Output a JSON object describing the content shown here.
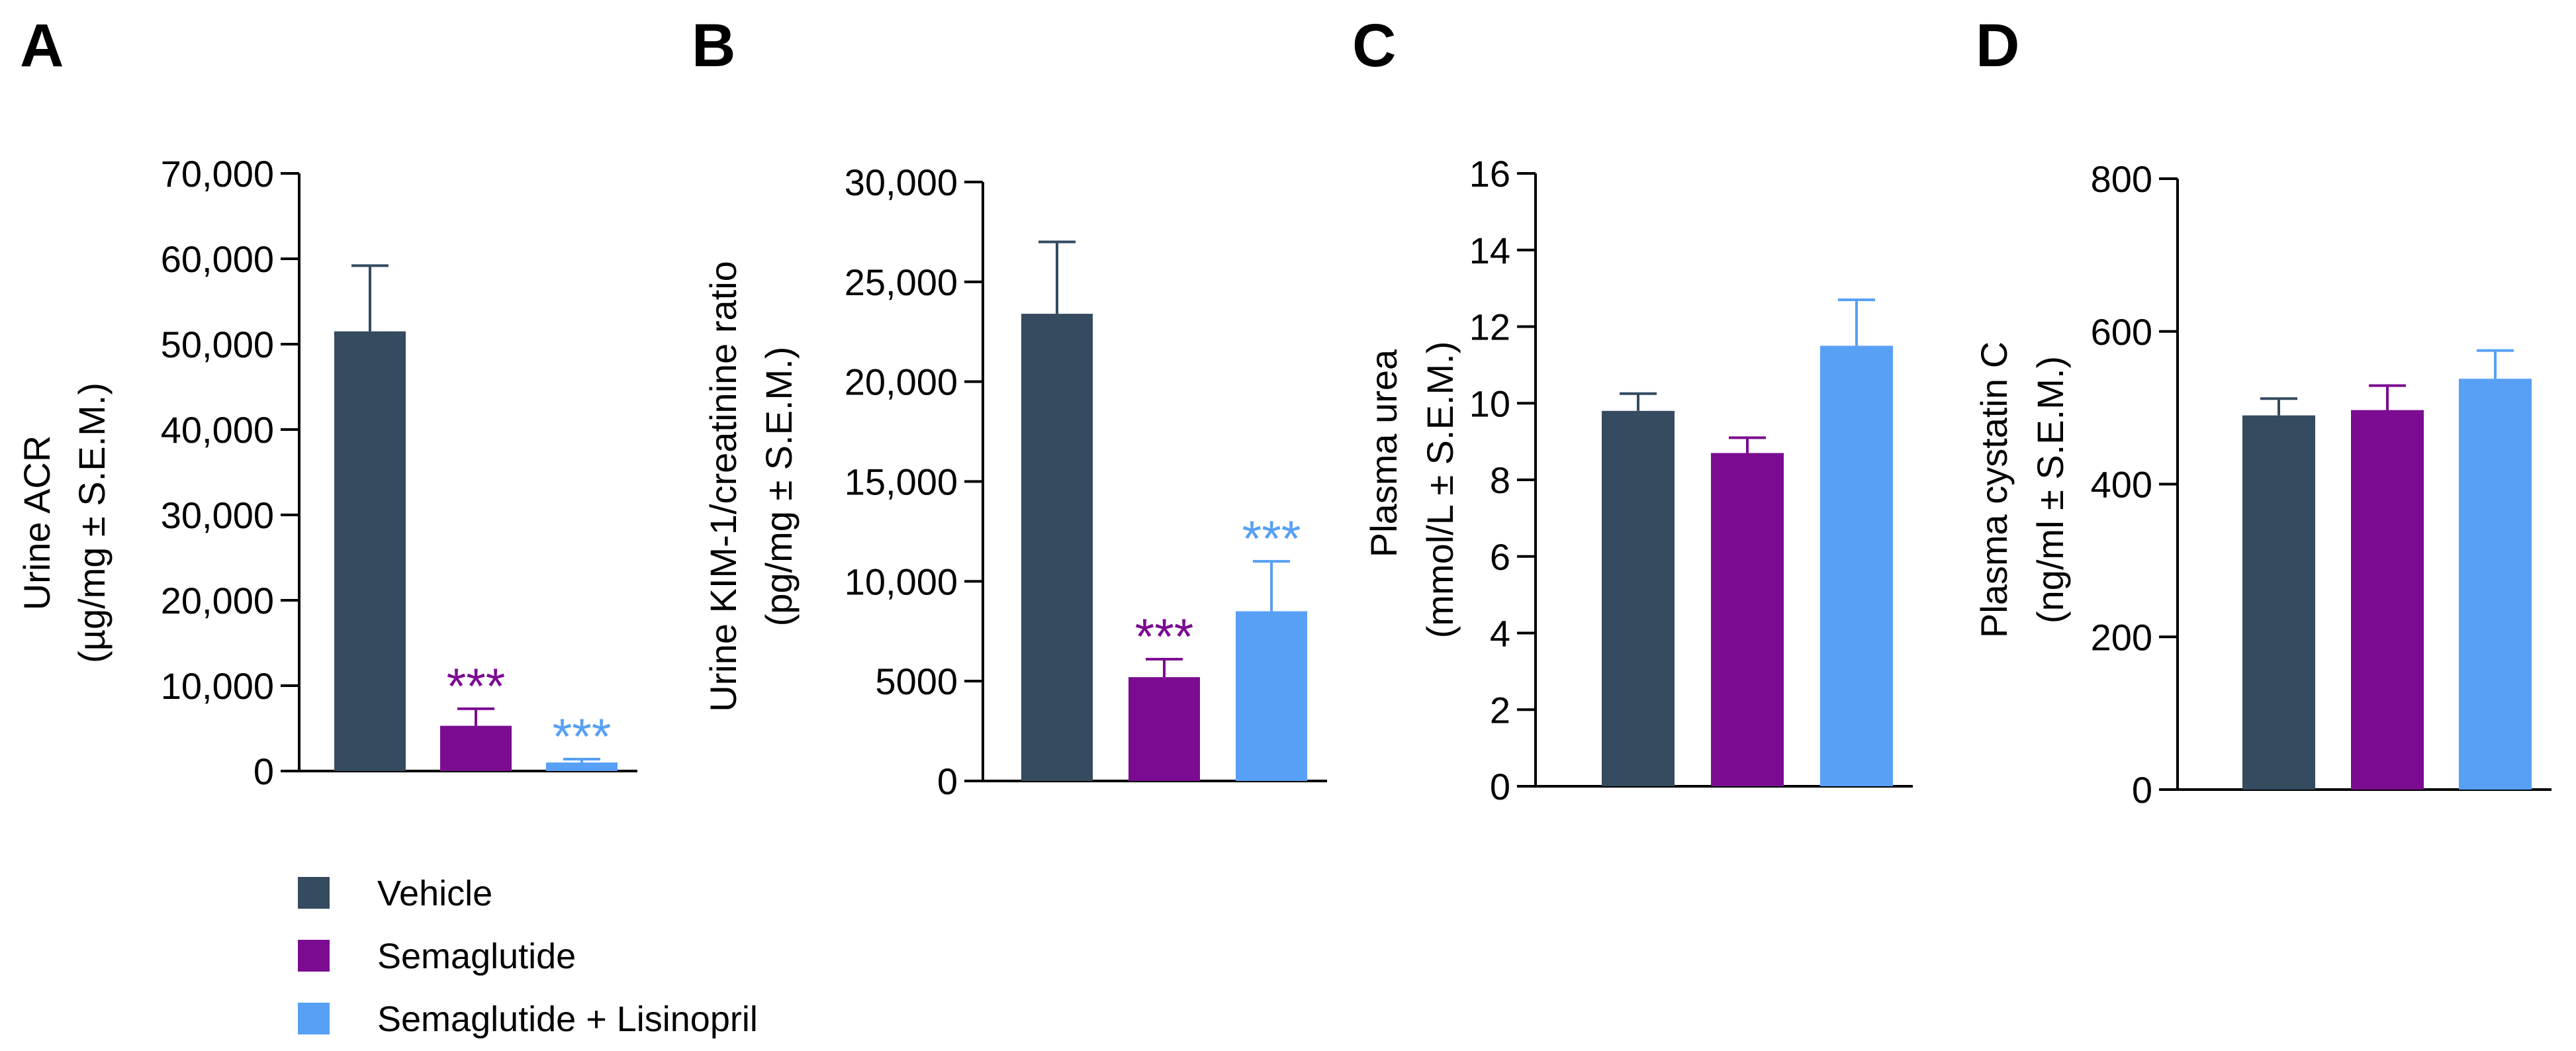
{
  "chart_data": [
    {
      "type": "bar",
      "panel": "A",
      "ylabel": "Urine ACR",
      "ylabel_units": "(µg/mg ± S.E.M.)",
      "ylim": [
        0,
        70000
      ],
      "yticks": [
        0,
        10000,
        20000,
        30000,
        40000,
        50000,
        60000,
        70000
      ],
      "ytick_labels": [
        "0",
        "10,000",
        "20,000",
        "30,000",
        "40,000",
        "50,000",
        "60,000",
        "70,000"
      ],
      "categories": [
        "Vehicle",
        "Semaglutide",
        "Semaglutide + Lisinopril"
      ],
      "values": [
        51500,
        5300,
        1000
      ],
      "errors": [
        7700,
        2000,
        400
      ],
      "significance": [
        "",
        "***",
        "***"
      ]
    },
    {
      "type": "bar",
      "panel": "B",
      "ylabel": "Urine KIM-1/creatinine ratio",
      "ylabel_units": "(pg/mg ± S.E.M.)",
      "ylim": [
        0,
        30000
      ],
      "yticks": [
        0,
        5000,
        10000,
        15000,
        20000,
        25000,
        30000
      ],
      "ytick_labels": [
        "0",
        "5000",
        "10,000",
        "15,000",
        "20,000",
        "25,000",
        "30,000"
      ],
      "categories": [
        "Vehicle",
        "Semaglutide",
        "Semaglutide + Lisinopril"
      ],
      "values": [
        23400,
        5200,
        8500
      ],
      "errors": [
        3600,
        900,
        2500
      ],
      "significance": [
        "",
        "***",
        "***"
      ]
    },
    {
      "type": "bar",
      "panel": "C",
      "ylabel": "Plasma urea",
      "ylabel_units": "(mmol/L ± S.E.M.)",
      "ylim": [
        0,
        16
      ],
      "yticks": [
        0,
        2,
        4,
        6,
        8,
        10,
        12,
        14,
        16
      ],
      "ytick_labels": [
        "0",
        "2",
        "4",
        "6",
        "8",
        "10",
        "12",
        "14",
        "16"
      ],
      "categories": [
        "Vehicle",
        "Semaglutide",
        "Semaglutide + Lisinopril"
      ],
      "values": [
        9.8,
        8.7,
        11.5
      ],
      "errors": [
        0.45,
        0.4,
        1.2
      ],
      "significance": [
        "",
        "",
        ""
      ]
    },
    {
      "type": "bar",
      "panel": "D",
      "ylabel": "Plasma cystatin C",
      "ylabel_units": "(ng/ml ± S.E.M.)",
      "ylim": [
        0,
        800
      ],
      "yticks": [
        0,
        200,
        400,
        600,
        800
      ],
      "ytick_labels": [
        "0",
        "200",
        "400",
        "600",
        "800"
      ],
      "categories": [
        "Vehicle",
        "Semaglutide",
        "Semaglutide + Lisinopril"
      ],
      "values": [
        490,
        497,
        538
      ],
      "errors": [
        22,
        32,
        37
      ],
      "significance": [
        "",
        "",
        ""
      ]
    }
  ],
  "legend": {
    "entries": [
      {
        "label": "Vehicle",
        "color": "#344b60"
      },
      {
        "label": "Semaglutide",
        "color": "#7b0c91"
      },
      {
        "label": "Semaglutide + Lisinopril",
        "color": "#57a0f5"
      }
    ]
  },
  "colors": {
    "series": [
      "#344b60",
      "#7b0c91",
      "#57a0f5"
    ],
    "axis": "#000000"
  }
}
